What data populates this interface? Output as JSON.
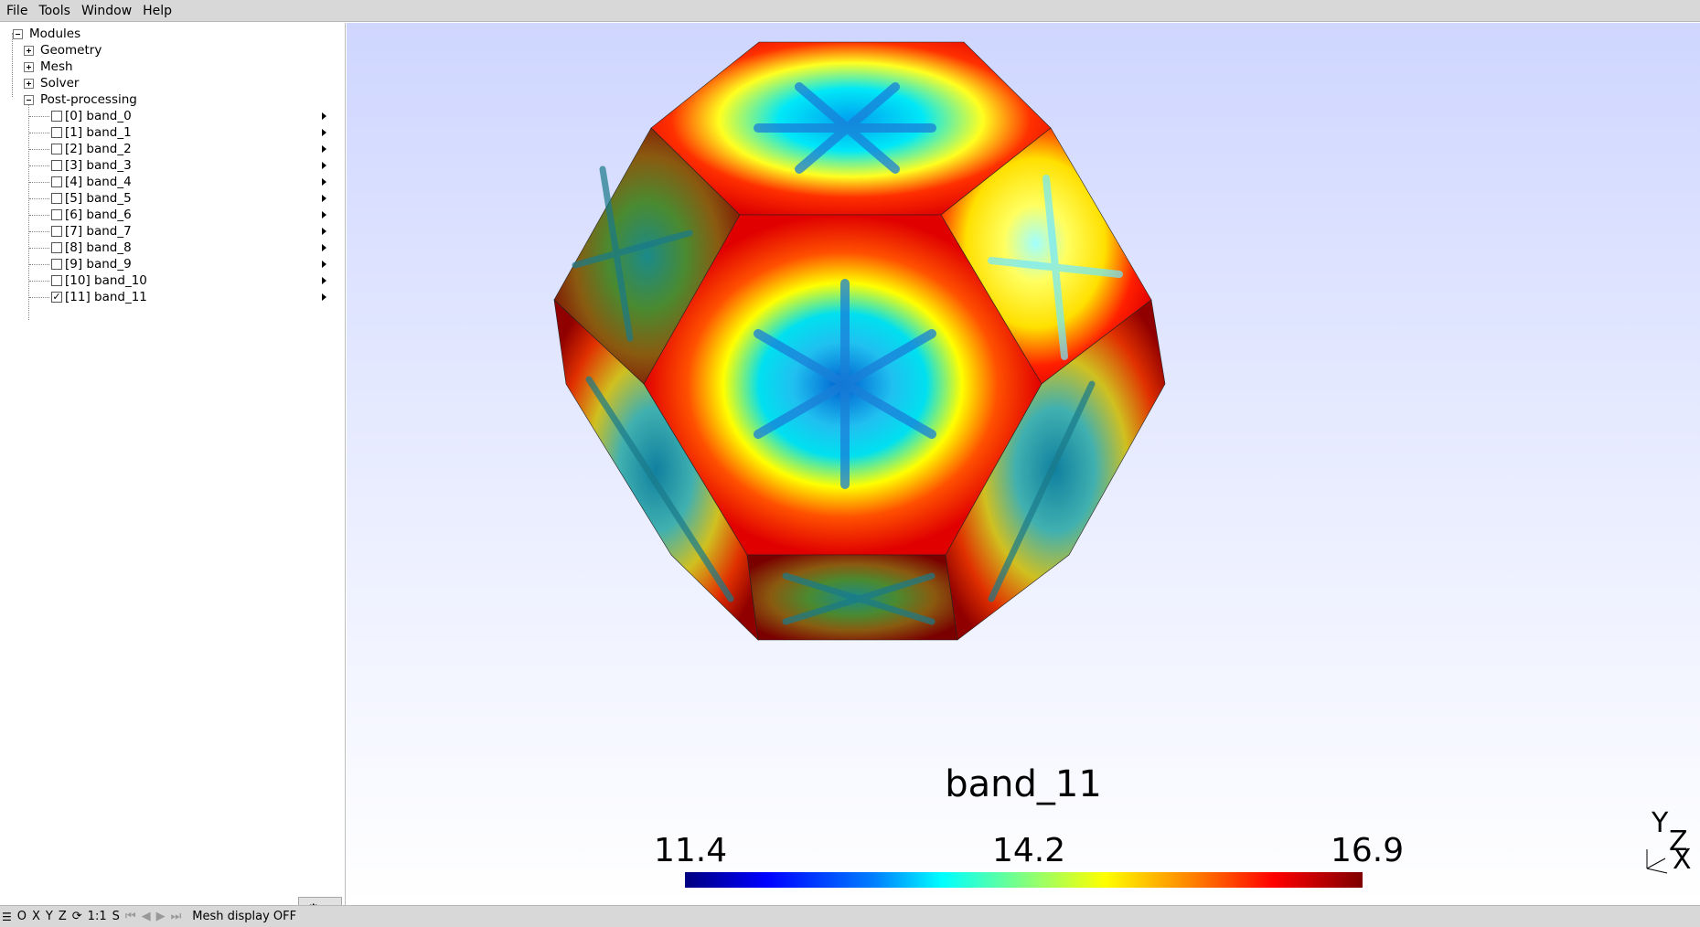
{
  "menubar": {
    "items": [
      "File",
      "Tools",
      "Window",
      "Help"
    ]
  },
  "tree": {
    "root": "Modules",
    "modules": [
      "Geometry",
      "Mesh",
      "Solver"
    ],
    "postprocessing": "Post-processing",
    "views": [
      {
        "label": "[0] band_0",
        "checked": false
      },
      {
        "label": "[1] band_1",
        "checked": false
      },
      {
        "label": "[2] band_2",
        "checked": false
      },
      {
        "label": "[3] band_3",
        "checked": false
      },
      {
        "label": "[4] band_4",
        "checked": false
      },
      {
        "label": "[5] band_5",
        "checked": false
      },
      {
        "label": "[6] band_6",
        "checked": false
      },
      {
        "label": "[7] band_7",
        "checked": false
      },
      {
        "label": "[8] band_8",
        "checked": false
      },
      {
        "label": "[9] band_9",
        "checked": false
      },
      {
        "label": "[10] band_10",
        "checked": false
      },
      {
        "label": "[11] band_11",
        "checked": true
      }
    ]
  },
  "viewport": {
    "title": "band_11",
    "colorbar": {
      "min": "11.4",
      "mid": "14.2",
      "max": "16.9"
    },
    "axes": {
      "y": "Y",
      "z": "Z",
      "x": "X"
    }
  },
  "statusbar": {
    "buttons": [
      "O",
      "X",
      "Y",
      "Z",
      "1:1",
      "S"
    ],
    "message": "Mesh display OFF"
  },
  "colors": {
    "menubar": "#d8d8d8",
    "low": "#00007f",
    "high": "#7f0000"
  }
}
